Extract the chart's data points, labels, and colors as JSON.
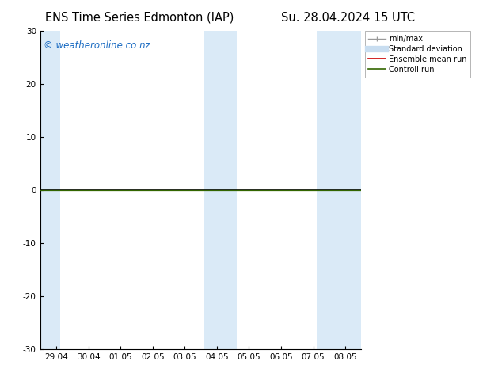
{
  "title_left": "ENS Time Series Edmonton (IAP)",
  "title_right": "Su. 28.04.2024 15 UTC",
  "watermark": "© weatheronline.co.nz",
  "watermark_color": "#1a6bc2",
  "ylim": [
    -30,
    30
  ],
  "yticks": [
    -30,
    -20,
    -10,
    0,
    10,
    20,
    30
  ],
  "xlabel_ticks": [
    "29.04",
    "30.04",
    "01.05",
    "02.05",
    "03.05",
    "04.05",
    "05.05",
    "06.05",
    "07.05",
    "08.05"
  ],
  "x_positions": [
    0,
    1,
    2,
    3,
    4,
    5,
    6,
    7,
    8,
    9
  ],
  "shaded_bands": [
    {
      "xmin": -0.5,
      "xmax": 0.12,
      "color": "#daeaf7"
    },
    {
      "xmin": 4.62,
      "xmax": 5.62,
      "color": "#daeaf7"
    },
    {
      "xmin": 8.12,
      "xmax": 9.5,
      "color": "#daeaf7"
    }
  ],
  "zero_line_color": "#000000",
  "control_run_color": "#336600",
  "background_color": "#ffffff",
  "plot_bg_color": "#ffffff",
  "title_fontsize": 10.5,
  "tick_fontsize": 7.5,
  "watermark_fontsize": 8.5,
  "legend_fontsize": 7.0,
  "minmax_color": "#999999",
  "stddev_color": "#c8ddf0",
  "ensemble_mean_color": "#cc0000"
}
